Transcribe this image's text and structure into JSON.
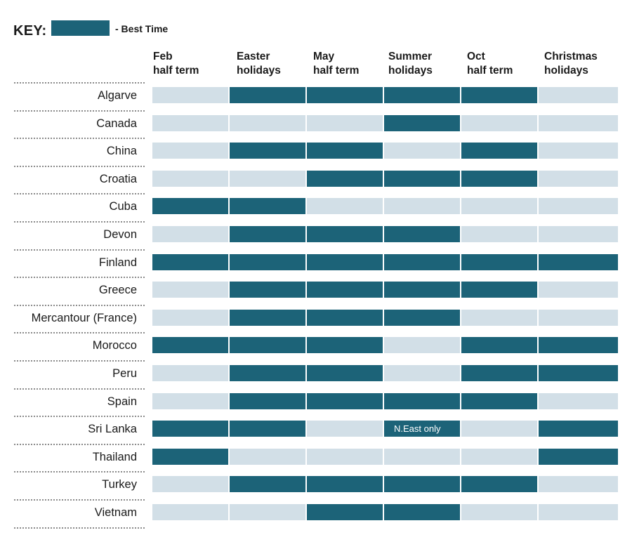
{
  "key": {
    "label": "KEY:",
    "text": "- Best Time"
  },
  "colors": {
    "best": "#1c6378",
    "other": "#d2dfe7",
    "separator": "#8a8a8a"
  },
  "chart_data": {
    "type": "table",
    "columns": [
      [
        "Feb",
        "half term"
      ],
      [
        "Easter",
        "holidays"
      ],
      [
        "May",
        "half term"
      ],
      [
        "Summer",
        "holidays"
      ],
      [
        "Oct",
        "half term"
      ],
      [
        "Christmas",
        "holidays"
      ]
    ],
    "rows": [
      {
        "destination": "Algarve",
        "best": [
          0,
          1,
          1,
          1,
          1,
          0
        ]
      },
      {
        "destination": "Canada",
        "best": [
          0,
          0,
          0,
          1,
          0,
          0
        ]
      },
      {
        "destination": "China",
        "best": [
          0,
          1,
          1,
          0,
          1,
          0
        ]
      },
      {
        "destination": "Croatia",
        "best": [
          0,
          0,
          1,
          1,
          1,
          0
        ]
      },
      {
        "destination": "Cuba",
        "best": [
          1,
          1,
          0,
          0,
          0,
          0
        ]
      },
      {
        "destination": "Devon",
        "best": [
          0,
          1,
          1,
          1,
          0,
          0
        ]
      },
      {
        "destination": "Finland",
        "best": [
          1,
          1,
          1,
          1,
          1,
          1
        ]
      },
      {
        "destination": "Greece",
        "best": [
          0,
          1,
          1,
          1,
          1,
          0
        ]
      },
      {
        "destination": "Mercantour (France)",
        "best": [
          0,
          1,
          1,
          1,
          0,
          0
        ]
      },
      {
        "destination": "Morocco",
        "best": [
          1,
          1,
          1,
          0,
          1,
          1
        ]
      },
      {
        "destination": "Peru",
        "best": [
          0,
          1,
          1,
          0,
          1,
          1
        ]
      },
      {
        "destination": "Spain",
        "best": [
          0,
          1,
          1,
          1,
          1,
          0
        ]
      },
      {
        "destination": "Sri Lanka",
        "best": [
          1,
          1,
          0,
          1,
          0,
          1
        ],
        "notes": {
          "3": "N.East only"
        }
      },
      {
        "destination": "Thailand",
        "best": [
          1,
          0,
          0,
          0,
          0,
          1
        ]
      },
      {
        "destination": "Turkey",
        "best": [
          0,
          1,
          1,
          1,
          1,
          0
        ]
      },
      {
        "destination": "Vietnam",
        "best": [
          0,
          0,
          1,
          1,
          0,
          0
        ]
      }
    ]
  }
}
